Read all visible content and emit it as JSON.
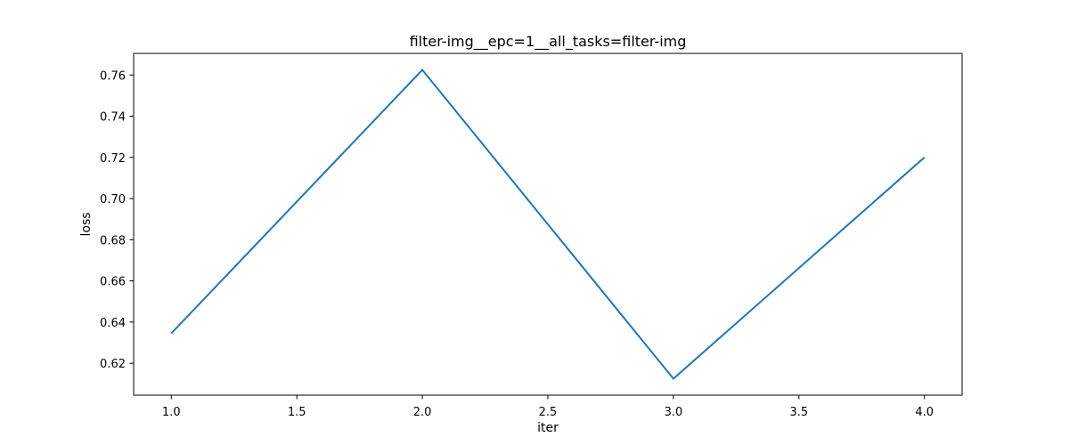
{
  "chart_data": {
    "type": "line",
    "title": "filter-img__epc=1__all_tasks=filter-img",
    "xlabel": "iter",
    "ylabel": "loss",
    "xlim": [
      0.85,
      4.15
    ],
    "ylim": [
      0.6045,
      0.7705
    ],
    "xticks": [
      1.0,
      1.5,
      2.0,
      2.5,
      3.0,
      3.5,
      4.0
    ],
    "xtick_labels": [
      "1.0",
      "1.5",
      "2.0",
      "2.5",
      "3.0",
      "3.5",
      "4.0"
    ],
    "yticks": [
      0.62,
      0.64,
      0.66,
      0.68,
      0.7,
      0.72,
      0.74,
      0.76
    ],
    "ytick_labels": [
      "0.62",
      "0.64",
      "0.66",
      "0.68",
      "0.70",
      "0.72",
      "0.74",
      "0.76"
    ],
    "grid": false,
    "series": [
      {
        "x": [
          1.0,
          2.0,
          3.0,
          4.0
        ],
        "y": [
          0.6345,
          0.7625,
          0.6125,
          0.72
        ],
        "color": "#1f77b4"
      }
    ]
  }
}
